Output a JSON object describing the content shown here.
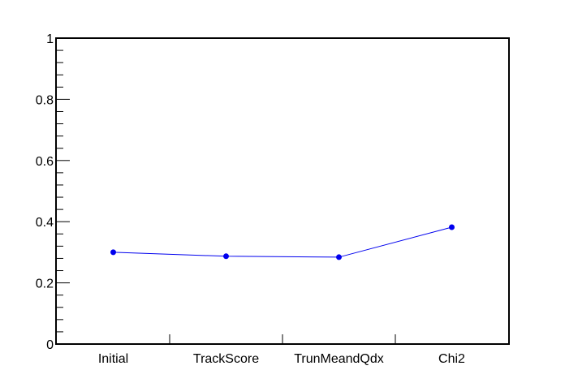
{
  "chart_data": {
    "type": "line",
    "title": "",
    "xlabel": "",
    "ylabel": "",
    "categories": [
      "Initial",
      "TrackScore",
      "TrunMeandQdx",
      "Chi2"
    ],
    "series": [
      {
        "values": [
          0.3,
          0.287,
          0.284,
          0.382
        ]
      }
    ],
    "ylim": [
      0,
      1
    ],
    "yticks": [
      "0",
      "0.2",
      "0.4",
      "0.6",
      "0.8",
      "1"
    ],
    "grid": false,
    "colors": {
      "series": "#0000ee",
      "frame": "#000000"
    }
  }
}
